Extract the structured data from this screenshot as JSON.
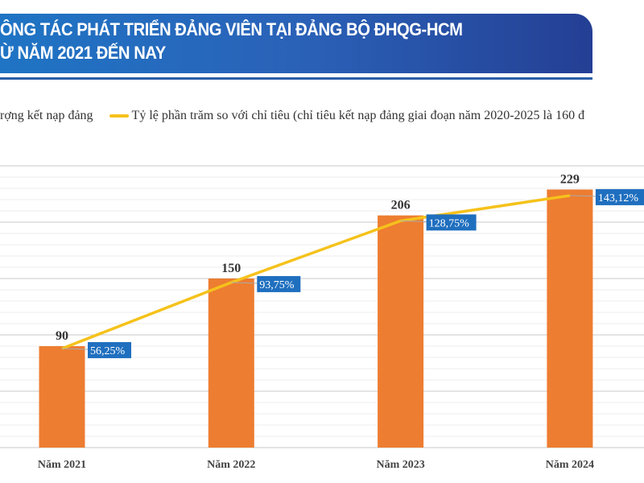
{
  "header": {
    "title_line1": "ÔNG TÁC PHÁT TRIỂN ĐẢNG VIÊN TẠI ĐẢNG BỘ ĐHQG-HCM",
    "title_line2": "Ừ NĂM 2021 ĐẾN NAY"
  },
  "colors": {
    "bar": "#ed7d31",
    "line": "#f5c21b",
    "label_bg": "#1f6fbf",
    "banner": "#2a62b8"
  },
  "chart_data": {
    "type": "bar",
    "categories": [
      "Năm 2021",
      "Năm 2022",
      "Năm 2023",
      "Năm 2024"
    ],
    "series": [
      {
        "name": "rợng kết nạp đảng",
        "type": "bar",
        "values": [
          90,
          150,
          206,
          229
        ],
        "labels": [
          "90",
          "150",
          "206",
          "229"
        ]
      },
      {
        "name": "Tỷ lệ phần trăm so với chỉ tiêu (chỉ tiêu kết nạp đảng giai đoạn năm 2020-2025 là 160 đ",
        "type": "line",
        "axis": "secondary",
        "values": [
          56.25,
          93.75,
          128.75,
          143.12
        ],
        "labels": [
          "56,25%",
          "93,75%",
          "128,75%",
          "143,12%"
        ]
      }
    ],
    "ylim": [
      0,
      250
    ],
    "y2lim": [
      0,
      160
    ],
    "grid": true,
    "legend": "top"
  }
}
